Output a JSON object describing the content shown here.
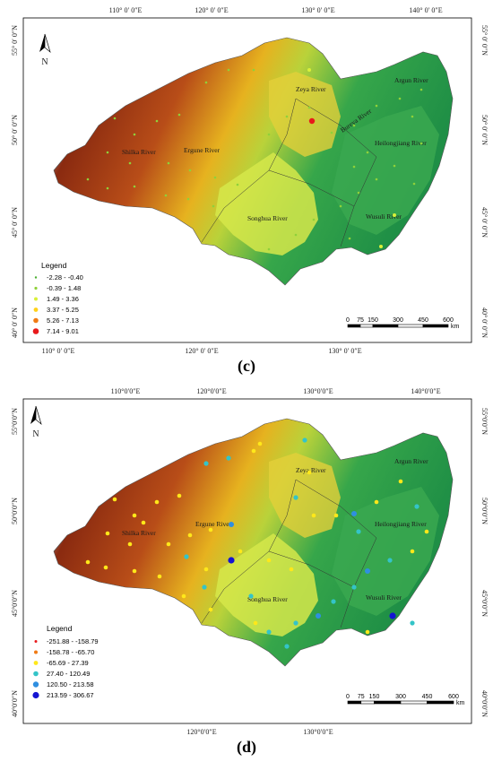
{
  "panels": [
    {
      "id": "c",
      "caption": "(c)",
      "lon_labels": [
        "110° 0′ 0″E",
        "120° 0′ 0″E",
        "130° 0′ 0″E",
        "140° 0′ 0″E"
      ],
      "lat_labels": [
        "55° 0′ 0″N",
        "50° 0′ 0″N",
        "45° 0′ 0″N",
        "40° 0′ 0″N"
      ],
      "north_label": "N",
      "rivers": [
        "Zeya River",
        "Argun River",
        "Shilka River",
        "Ergune River",
        "Songhua River",
        "Heilongjiang River",
        "Wusuli River",
        "Bureya River"
      ],
      "legend": {
        "title": "Legend",
        "items": [
          {
            "label": "-2.28 - -0.40",
            "color": "#4caf32"
          },
          {
            "label": "-0.39 - 1.48",
            "color": "#8fd13a"
          },
          {
            "label": "1.49 - 3.36",
            "color": "#d9f03a"
          },
          {
            "label": "3.37 - 5.25",
            "color": "#ffd11a"
          },
          {
            "label": "5.26 - 7.13",
            "color": "#f07a14"
          },
          {
            "label": "7.14 - 9.01",
            "color": "#e8191b"
          }
        ]
      },
      "scalebar": {
        "ticks": [
          "0",
          "75",
          "150",
          "300",
          "450",
          "600"
        ],
        "unit": "km"
      }
    },
    {
      "id": "d",
      "caption": "(d)",
      "lon_labels": [
        "110°0′0″E",
        "120°0′0″E",
        "130°0′0″E",
        "140°0′0″E"
      ],
      "lat_labels": [
        "55°0′0″N",
        "50°0′0″N",
        "45°0′0″N",
        "40°0′0″N"
      ],
      "north_label": "N",
      "rivers": [
        "Zeya River",
        "Argun River",
        "Shilka River",
        "Ergune River",
        "Songhua River",
        "Heilongjiang River",
        "Wusuli River"
      ],
      "legend": {
        "title": "Legend",
        "items": [
          {
            "label": "-251.88 - -158.79",
            "color": "#e8191b"
          },
          {
            "label": "-158.78 - -65.70",
            "color": "#f07a14"
          },
          {
            "label": "-65.69 - 27.39",
            "color": "#ffe81a"
          },
          {
            "label": "27.40 - 120.49",
            "color": "#34c4c8"
          },
          {
            "label": "120.50 - 213.58",
            "color": "#2f8fe0"
          },
          {
            "label": "213.59 - 306.67",
            "color": "#1414d2"
          }
        ]
      },
      "scalebar": {
        "ticks": [
          "0",
          "75",
          "150",
          "300",
          "450",
          "600"
        ],
        "unit": "km"
      }
    }
  ]
}
